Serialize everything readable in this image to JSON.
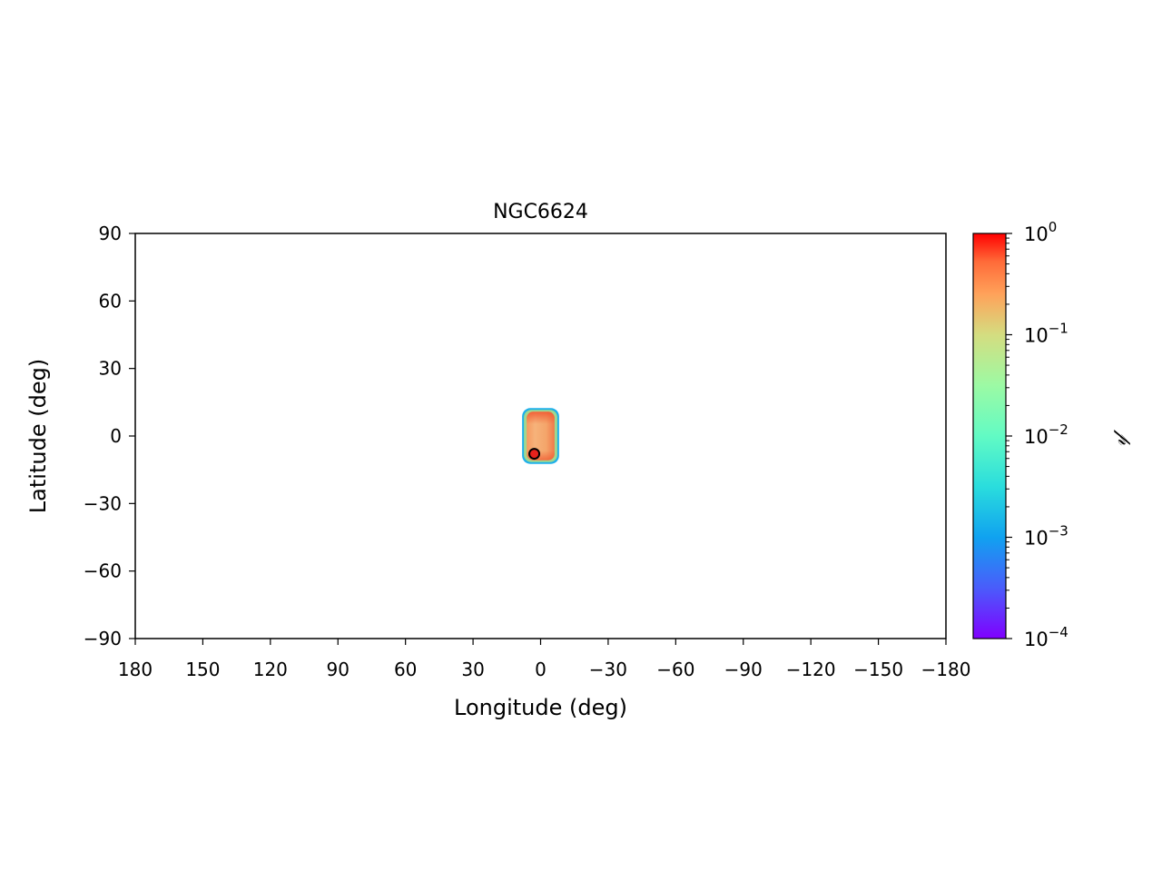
{
  "chart_data": {
    "type": "heatmap",
    "title": "NGC6624",
    "xlabel": "Longitude (deg)",
    "ylabel": "Latitude (deg)",
    "xlim": [
      180,
      -180
    ],
    "ylim": [
      -90,
      90
    ],
    "x_reversed": true,
    "xticks": [
      180,
      150,
      120,
      90,
      60,
      30,
      0,
      -30,
      -60,
      -90,
      -120,
      -150,
      -180
    ],
    "xtick_labels": [
      "180",
      "150",
      "120",
      "90",
      "60",
      "30",
      "0",
      "−30",
      "−60",
      "−90",
      "−120",
      "−150",
      "−180"
    ],
    "yticks": [
      90,
      60,
      30,
      0,
      -30,
      -60,
      -90
    ],
    "ytick_labels": [
      "90",
      "60",
      "30",
      "0",
      "−30",
      "−60",
      "−90"
    ],
    "grid": false,
    "density_region": {
      "lon_range": [
        7,
        -7
      ],
      "lat_range": [
        -12,
        12
      ],
      "peak_value": 1.0,
      "edge_value": 0.001,
      "colormap": "rainbow"
    },
    "marker": {
      "lon": 2.8,
      "lat": -7.9,
      "color": "#e8221c",
      "edgecolor": "#000000"
    },
    "colorbar": {
      "label": "𝓅",
      "scale": "log",
      "range": [
        0.0001,
        1
      ],
      "ticks": [
        1,
        0.1,
        0.01,
        0.001,
        0.0001
      ],
      "tick_bases": [
        "10",
        "10",
        "10",
        "10",
        "10"
      ],
      "tick_exponents": [
        "0",
        "−1",
        "−2",
        "−3",
        "−4"
      ],
      "colormap": "rainbow"
    }
  }
}
